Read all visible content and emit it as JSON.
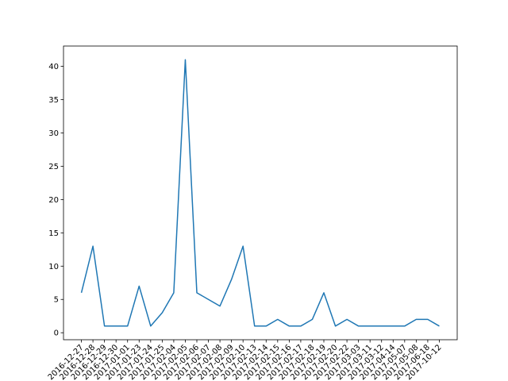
{
  "chart_data": {
    "type": "line",
    "categories": [
      "2016-12-27",
      "2016-12-28",
      "2016-12-29",
      "2016-12-30",
      "2017-01-01",
      "2017-01-23",
      "2017-01-24",
      "2017-01-25",
      "2017-02-04",
      "2017-02-05",
      "2017-02-06",
      "2017-02-07",
      "2017-02-08",
      "2017-02-09",
      "2017-02-10",
      "2017-02-13",
      "2017-02-14",
      "2017-02-15",
      "2017-02-16",
      "2017-02-17",
      "2017-02-18",
      "2017-02-19",
      "2017-02-20",
      "2017-02-22",
      "2017-03-03",
      "2017-03-11",
      "2017-03-12",
      "2017-04-14",
      "2017-05-07",
      "2017-05-08",
      "2017-06-18",
      "2017-10-12"
    ],
    "values": [
      6,
      13,
      1,
      1,
      1,
      7,
      1,
      3,
      6,
      41,
      6,
      5,
      4,
      8,
      13,
      1,
      1,
      2,
      1,
      1,
      2,
      6,
      1,
      2,
      1,
      1,
      1,
      1,
      1,
      2,
      2,
      1
    ],
    "color": "#1f77b4",
    "ylim": [
      -1.05,
      43.05
    ],
    "yticks": [
      0,
      5,
      10,
      15,
      20,
      25,
      30,
      35,
      40
    ],
    "grid": false
  }
}
